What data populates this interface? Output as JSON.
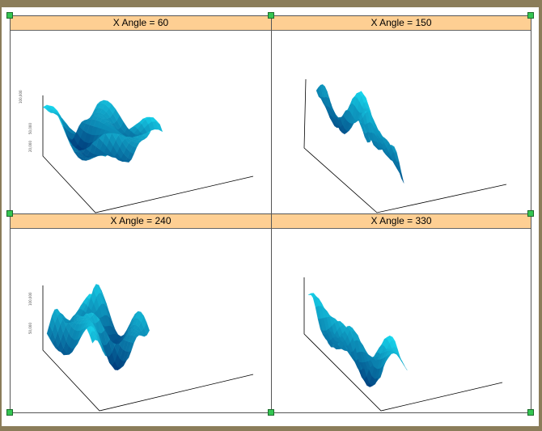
{
  "chart_data": [
    {
      "type": "surface3d",
      "title": "X Angle = 60",
      "x_angle": 60,
      "colors": {
        "low": "#003a7a",
        "high": "#19e1f5"
      },
      "z_ticks": [
        "100,000",
        "50,000",
        "20,000"
      ]
    },
    {
      "type": "surface3d",
      "title": "X Angle = 150",
      "x_angle": 150,
      "colors": {
        "low": "#003a7a",
        "high": "#19e1f5"
      }
    },
    {
      "type": "surface3d",
      "title": "X Angle = 240",
      "x_angle": 240,
      "colors": {
        "low": "#003a7a",
        "high": "#19e1f5"
      },
      "z_ticks": [
        "100,000",
        "50,000"
      ]
    },
    {
      "type": "surface3d",
      "title": "X Angle = 330",
      "x_angle": 330,
      "colors": {
        "low": "#003a7a",
        "high": "#19e1f5"
      }
    }
  ],
  "handles": {
    "color": "#34c552"
  }
}
